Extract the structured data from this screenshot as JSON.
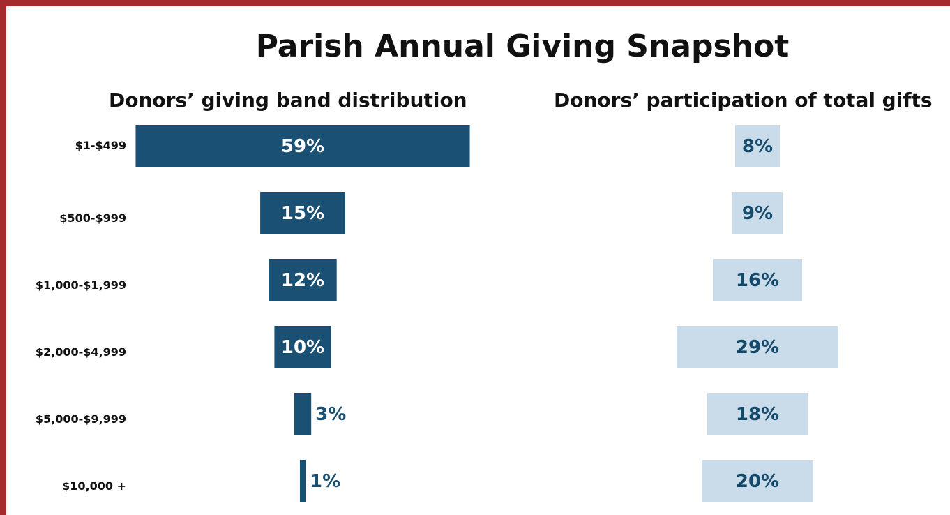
{
  "chart_data": {
    "type": "bar",
    "title": "Parish Annual Giving Snapshot",
    "categories": [
      "$1-$499",
      "$500-$999",
      "$1,000-$1,999",
      "$2,000-$4,999",
      "$5,000-$9,999",
      "$10,000 +"
    ],
    "series": [
      {
        "name": "Donors’ giving band distribution",
        "values": [
          59,
          15,
          12,
          10,
          3,
          1
        ],
        "labels": [
          "59%",
          "15%",
          "12%",
          "10%",
          "3%",
          "1%"
        ]
      },
      {
        "name": "Donors’ participation of total gifts",
        "values": [
          8,
          9,
          16,
          29,
          18,
          20
        ],
        "labels": [
          "8%",
          "9%",
          "16%",
          "29%",
          "18%",
          "20%"
        ]
      }
    ],
    "orientation": "horizontal-centered",
    "grid": false
  },
  "colors": {
    "border": "#a52a2e",
    "left_bar": "#1a5073",
    "left_label_inside": "#ffffff",
    "left_label_outside": "#1a5073",
    "right_bar": "#cadbea",
    "right_label": "#164a6b"
  }
}
